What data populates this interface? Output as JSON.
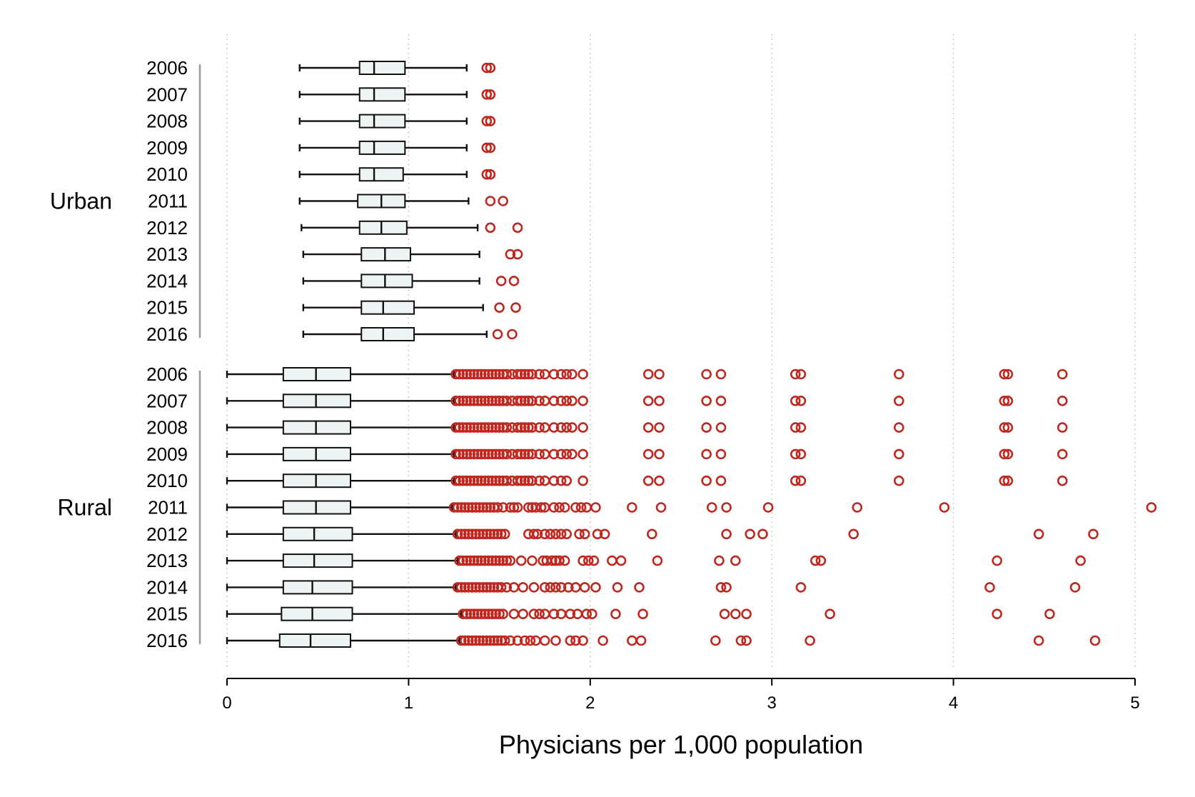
{
  "chart_data": {
    "type": "boxplot",
    "orientation": "horizontal",
    "xlabel": "Physicians per 1,000 population",
    "xlim": [
      0,
      5
    ],
    "xticks": [
      "0",
      "1",
      "2",
      "3",
      "4",
      "5"
    ],
    "grid": "vertical dotted",
    "colors": {
      "box_fill": "#eef3f3",
      "box_stroke": "#111111",
      "whisker": "#111111",
      "outlier": "#c0281f",
      "grid": "#b8b8b8",
      "group_bracket": "#9a9a9a"
    },
    "groups": [
      {
        "name": "Urban",
        "rows": [
          {
            "year": "2006",
            "whisker_low": 0.4,
            "q1": 0.73,
            "median": 0.81,
            "q3": 0.98,
            "whisker_high": 1.32,
            "outliers": [
              1.43,
              1.45
            ]
          },
          {
            "year": "2007",
            "whisker_low": 0.4,
            "q1": 0.73,
            "median": 0.81,
            "q3": 0.98,
            "whisker_high": 1.32,
            "outliers": [
              1.43,
              1.45
            ]
          },
          {
            "year": "2008",
            "whisker_low": 0.4,
            "q1": 0.73,
            "median": 0.81,
            "q3": 0.98,
            "whisker_high": 1.32,
            "outliers": [
              1.43,
              1.45
            ]
          },
          {
            "year": "2009",
            "whisker_low": 0.4,
            "q1": 0.73,
            "median": 0.81,
            "q3": 0.98,
            "whisker_high": 1.32,
            "outliers": [
              1.43,
              1.45
            ]
          },
          {
            "year": "2010",
            "whisker_low": 0.4,
            "q1": 0.73,
            "median": 0.81,
            "q3": 0.97,
            "whisker_high": 1.32,
            "outliers": [
              1.43,
              1.45
            ]
          },
          {
            "year": "2011",
            "whisker_low": 0.4,
            "q1": 0.72,
            "median": 0.85,
            "q3": 0.98,
            "whisker_high": 1.33,
            "outliers": [
              1.45,
              1.52
            ]
          },
          {
            "year": "2012",
            "whisker_low": 0.41,
            "q1": 0.73,
            "median": 0.85,
            "q3": 0.99,
            "whisker_high": 1.38,
            "outliers": [
              1.45,
              1.6
            ]
          },
          {
            "year": "2013",
            "whisker_low": 0.42,
            "q1": 0.74,
            "median": 0.87,
            "q3": 1.01,
            "whisker_high": 1.39,
            "outliers": [
              1.56,
              1.6
            ]
          },
          {
            "year": "2014",
            "whisker_low": 0.42,
            "q1": 0.74,
            "median": 0.87,
            "q3": 1.02,
            "whisker_high": 1.39,
            "outliers": [
              1.51,
              1.58
            ]
          },
          {
            "year": "2015",
            "whisker_low": 0.42,
            "q1": 0.74,
            "median": 0.86,
            "q3": 1.03,
            "whisker_high": 1.41,
            "outliers": [
              1.5,
              1.59
            ]
          },
          {
            "year": "2016",
            "whisker_low": 0.42,
            "q1": 0.74,
            "median": 0.86,
            "q3": 1.03,
            "whisker_high": 1.43,
            "outliers": [
              1.49,
              1.57
            ]
          }
        ]
      },
      {
        "name": "Rural",
        "rows": [
          {
            "year": "2006",
            "whisker_low": 0.0,
            "q1": 0.31,
            "median": 0.49,
            "q3": 0.68,
            "whisker_high": 1.25,
            "outliers": [
              1.26,
              1.28,
              1.3,
              1.32,
              1.34,
              1.36,
              1.38,
              1.4,
              1.42,
              1.44,
              1.46,
              1.48,
              1.5,
              1.52,
              1.54,
              1.57,
              1.6,
              1.62,
              1.64,
              1.66,
              1.68,
              1.72,
              1.75,
              1.8,
              1.84,
              1.87,
              1.9,
              1.96,
              2.32,
              2.38,
              2.64,
              2.72,
              3.13,
              3.16,
              3.7,
              4.28,
              4.3,
              4.6
            ]
          },
          {
            "year": "2007",
            "whisker_low": 0.0,
            "q1": 0.31,
            "median": 0.49,
            "q3": 0.68,
            "whisker_high": 1.25,
            "outliers": [
              1.26,
              1.28,
              1.3,
              1.32,
              1.34,
              1.36,
              1.38,
              1.4,
              1.42,
              1.44,
              1.46,
              1.48,
              1.5,
              1.52,
              1.54,
              1.57,
              1.6,
              1.62,
              1.64,
              1.66,
              1.68,
              1.72,
              1.75,
              1.8,
              1.84,
              1.87,
              1.9,
              1.96,
              2.32,
              2.38,
              2.64,
              2.72,
              3.13,
              3.16,
              3.7,
              4.28,
              4.3,
              4.6
            ]
          },
          {
            "year": "2008",
            "whisker_low": 0.0,
            "q1": 0.31,
            "median": 0.49,
            "q3": 0.68,
            "whisker_high": 1.25,
            "outliers": [
              1.26,
              1.28,
              1.3,
              1.32,
              1.34,
              1.36,
              1.38,
              1.4,
              1.42,
              1.44,
              1.46,
              1.48,
              1.5,
              1.52,
              1.54,
              1.57,
              1.6,
              1.62,
              1.64,
              1.66,
              1.68,
              1.72,
              1.75,
              1.8,
              1.84,
              1.87,
              1.9,
              1.96,
              2.32,
              2.38,
              2.64,
              2.72,
              3.13,
              3.16,
              3.7,
              4.28,
              4.3,
              4.6
            ]
          },
          {
            "year": "2009",
            "whisker_low": 0.0,
            "q1": 0.31,
            "median": 0.49,
            "q3": 0.68,
            "whisker_high": 1.25,
            "outliers": [
              1.26,
              1.28,
              1.3,
              1.32,
              1.34,
              1.36,
              1.38,
              1.4,
              1.42,
              1.44,
              1.46,
              1.48,
              1.5,
              1.52,
              1.54,
              1.57,
              1.6,
              1.62,
              1.64,
              1.66,
              1.68,
              1.72,
              1.75,
              1.8,
              1.84,
              1.87,
              1.9,
              1.96,
              2.32,
              2.38,
              2.64,
              2.72,
              3.13,
              3.16,
              3.7,
              4.28,
              4.3,
              4.6
            ]
          },
          {
            "year": "2010",
            "whisker_low": 0.0,
            "q1": 0.31,
            "median": 0.49,
            "q3": 0.68,
            "whisker_high": 1.25,
            "outliers": [
              1.26,
              1.28,
              1.3,
              1.32,
              1.34,
              1.36,
              1.38,
              1.4,
              1.42,
              1.44,
              1.46,
              1.48,
              1.5,
              1.52,
              1.54,
              1.57,
              1.6,
              1.62,
              1.64,
              1.66,
              1.68,
              1.72,
              1.75,
              1.8,
              1.84,
              1.87,
              1.96,
              2.32,
              2.38,
              2.64,
              2.72,
              3.13,
              3.16,
              3.7,
              4.28,
              4.3,
              4.6
            ]
          },
          {
            "year": "2011",
            "whisker_low": 0.0,
            "q1": 0.31,
            "median": 0.49,
            "q3": 0.68,
            "whisker_high": 1.24,
            "outliers": [
              1.25,
              1.27,
              1.29,
              1.31,
              1.33,
              1.35,
              1.37,
              1.39,
              1.41,
              1.43,
              1.45,
              1.47,
              1.49,
              1.52,
              1.56,
              1.58,
              1.6,
              1.66,
              1.68,
              1.7,
              1.73,
              1.75,
              1.8,
              1.83,
              1.86,
              1.92,
              1.95,
              1.98,
              2.03,
              2.23,
              2.39,
              2.67,
              2.75,
              2.98,
              3.47,
              3.95,
              5.09
            ]
          },
          {
            "year": "2012",
            "whisker_low": 0.0,
            "q1": 0.31,
            "median": 0.48,
            "q3": 0.69,
            "whisker_high": 1.26,
            "outliers": [
              1.27,
              1.29,
              1.31,
              1.33,
              1.35,
              1.37,
              1.39,
              1.41,
              1.43,
              1.45,
              1.47,
              1.49,
              1.51,
              1.53,
              1.66,
              1.69,
              1.71,
              1.75,
              1.78,
              1.81,
              1.84,
              1.87,
              1.94,
              1.97,
              2.04,
              2.08,
              2.34,
              2.75,
              2.88,
              2.95,
              3.45,
              4.47,
              4.77
            ]
          },
          {
            "year": "2013",
            "whisker_low": 0.0,
            "q1": 0.31,
            "median": 0.48,
            "q3": 0.69,
            "whisker_high": 1.27,
            "outliers": [
              1.28,
              1.3,
              1.32,
              1.34,
              1.36,
              1.38,
              1.4,
              1.42,
              1.44,
              1.46,
              1.48,
              1.5,
              1.52,
              1.54,
              1.56,
              1.62,
              1.68,
              1.74,
              1.76,
              1.79,
              1.81,
              1.83,
              1.86,
              1.96,
              1.99,
              2.02,
              2.12,
              2.17,
              2.37,
              2.71,
              2.8,
              3.24,
              3.27,
              4.24,
              4.7
            ]
          },
          {
            "year": "2014",
            "whisker_low": 0.0,
            "q1": 0.31,
            "median": 0.47,
            "q3": 0.69,
            "whisker_high": 1.26,
            "outliers": [
              1.27,
              1.29,
              1.31,
              1.33,
              1.35,
              1.37,
              1.39,
              1.41,
              1.43,
              1.45,
              1.47,
              1.49,
              1.51,
              1.54,
              1.58,
              1.63,
              1.69,
              1.75,
              1.78,
              1.81,
              1.84,
              1.88,
              1.92,
              1.97,
              2.03,
              2.15,
              2.27,
              2.72,
              2.75,
              3.16,
              4.2,
              4.67
            ]
          },
          {
            "year": "2015",
            "whisker_low": 0.0,
            "q1": 0.3,
            "median": 0.47,
            "q3": 0.69,
            "whisker_high": 1.29,
            "outliers": [
              1.3,
              1.32,
              1.34,
              1.36,
              1.38,
              1.4,
              1.42,
              1.44,
              1.46,
              1.48,
              1.5,
              1.52,
              1.58,
              1.63,
              1.69,
              1.72,
              1.75,
              1.8,
              1.84,
              1.89,
              1.93,
              1.98,
              2.01,
              2.14,
              2.29,
              2.74,
              2.8,
              2.86,
              3.32,
              4.24,
              4.53
            ]
          },
          {
            "year": "2016",
            "whisker_low": 0.0,
            "q1": 0.29,
            "median": 0.46,
            "q3": 0.68,
            "whisker_high": 1.28,
            "outliers": [
              1.29,
              1.31,
              1.33,
              1.35,
              1.37,
              1.39,
              1.41,
              1.43,
              1.45,
              1.47,
              1.49,
              1.51,
              1.53,
              1.56,
              1.6,
              1.64,
              1.67,
              1.7,
              1.75,
              1.81,
              1.89,
              1.92,
              1.96,
              2.07,
              2.23,
              2.28,
              2.69,
              2.83,
              2.86,
              3.21,
              4.47,
              4.78
            ]
          }
        ]
      }
    ]
  }
}
